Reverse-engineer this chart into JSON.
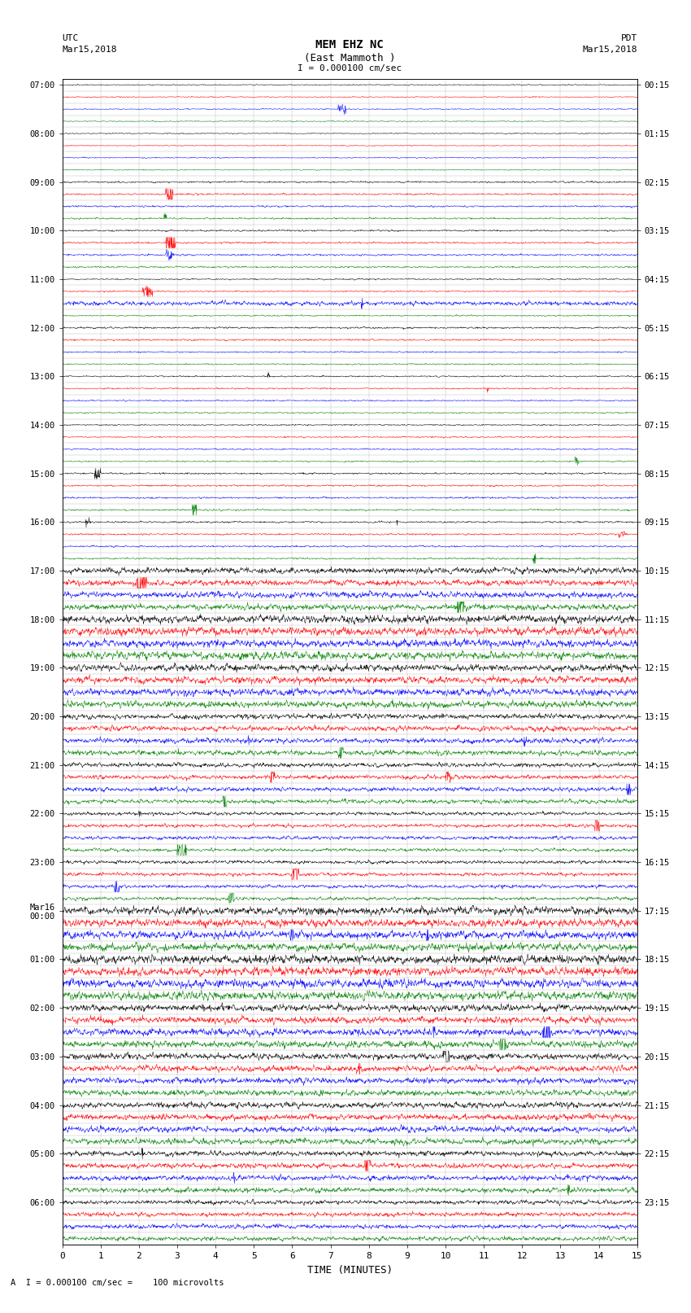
{
  "title_line1": "MEM EHZ NC",
  "title_line2": "(East Mammoth )",
  "title_scale": "I = 0.000100 cm/sec",
  "left_header_1": "UTC",
  "left_header_2": "Mar15,2018",
  "right_header_1": "PDT",
  "right_header_2": "Mar15,2018",
  "xlabel": "TIME (MINUTES)",
  "footer": "A  I = 0.000100 cm/sec =    100 microvolts",
  "xlim": [
    0,
    15
  ],
  "xticks": [
    0,
    1,
    2,
    3,
    4,
    5,
    6,
    7,
    8,
    9,
    10,
    11,
    12,
    13,
    14,
    15
  ],
  "left_times": [
    "07:00",
    "08:00",
    "09:00",
    "10:00",
    "11:00",
    "12:00",
    "13:00",
    "14:00",
    "15:00",
    "16:00",
    "17:00",
    "18:00",
    "19:00",
    "20:00",
    "21:00",
    "22:00",
    "23:00",
    "Mar16\n00:00",
    "01:00",
    "02:00",
    "03:00",
    "04:00",
    "05:00",
    "06:00"
  ],
  "right_times": [
    "00:15",
    "01:15",
    "02:15",
    "03:15",
    "04:15",
    "05:15",
    "06:15",
    "07:15",
    "08:15",
    "09:15",
    "10:15",
    "11:15",
    "12:15",
    "13:15",
    "14:15",
    "15:15",
    "16:15",
    "17:15",
    "18:15",
    "19:15",
    "20:15",
    "21:15",
    "22:15",
    "23:15"
  ],
  "trace_colors_cycle": [
    "black",
    "red",
    "blue",
    "green"
  ],
  "n_traces": 96,
  "background_color": "white",
  "grid_color": "#888888",
  "amp_profile": [
    0.06,
    0.06,
    0.06,
    0.06,
    0.06,
    0.06,
    0.06,
    0.06,
    0.1,
    0.1,
    0.1,
    0.1,
    0.1,
    0.1,
    0.1,
    0.1,
    0.08,
    0.08,
    0.25,
    0.08,
    0.1,
    0.1,
    0.08,
    0.08,
    0.08,
    0.08,
    0.08,
    0.08,
    0.08,
    0.08,
    0.08,
    0.08,
    0.1,
    0.1,
    0.1,
    0.1,
    0.1,
    0.1,
    0.1,
    0.1,
    0.35,
    0.35,
    0.35,
    0.35,
    0.45,
    0.45,
    0.45,
    0.45,
    0.4,
    0.4,
    0.4,
    0.4,
    0.3,
    0.3,
    0.3,
    0.3,
    0.25,
    0.25,
    0.25,
    0.25,
    0.2,
    0.2,
    0.2,
    0.2,
    0.2,
    0.2,
    0.2,
    0.2,
    0.45,
    0.45,
    0.45,
    0.45,
    0.5,
    0.5,
    0.5,
    0.5,
    0.4,
    0.4,
    0.4,
    0.4,
    0.35,
    0.35,
    0.35,
    0.35,
    0.35,
    0.35,
    0.35,
    0.35,
    0.3,
    0.3,
    0.3,
    0.3,
    0.25,
    0.25,
    0.25,
    0.25
  ]
}
